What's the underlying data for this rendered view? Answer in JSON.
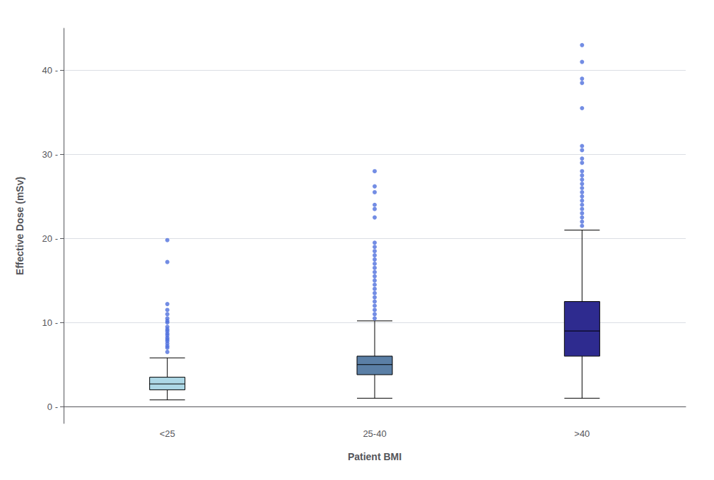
{
  "chart_data": {
    "type": "boxplot",
    "xlabel": "Patient BMI",
    "ylabel": "Effective Dose (mSv)",
    "categories": [
      "<25",
      "25-40",
      ">40"
    ],
    "colors": [
      "#add8e6",
      "#5b7fa6",
      "#2e2b8f"
    ],
    "values": [
      {
        "whisker_low": 0.8,
        "q1": 2.0,
        "median": 2.7,
        "q3": 3.5,
        "whisker_high": 5.8
      },
      {
        "whisker_low": 1.0,
        "q1": 3.8,
        "median": 5.0,
        "q3": 6.0,
        "whisker_high": 10.2
      },
      {
        "whisker_low": 1.0,
        "q1": 6.0,
        "median": 9.0,
        "q3": 12.5,
        "whisker_high": 21.0
      }
    ],
    "outliers": [
      [
        6.5,
        7.0,
        7.2,
        7.5,
        7.8,
        8.0,
        8.2,
        8.5,
        8.7,
        9.0,
        9.2,
        9.5,
        10.0,
        10.2,
        10.5,
        11.0,
        11.5,
        12.2,
        17.2,
        19.8
      ],
      [
        10.5,
        11.0,
        11.5,
        12.0,
        12.5,
        13.0,
        13.5,
        14.0,
        14.5,
        15.0,
        15.5,
        16.0,
        16.5,
        17.0,
        17.5,
        18.0,
        18.5,
        19.0,
        19.5,
        22.5,
        23.5,
        24.0,
        25.5,
        26.2,
        28.0
      ],
      [
        21.5,
        22.0,
        22.5,
        23.0,
        23.5,
        24.0,
        24.5,
        25.0,
        25.5,
        26.0,
        26.5,
        27.0,
        27.5,
        28.0,
        29.0,
        29.5,
        30.5,
        31.0,
        35.5,
        38.5,
        39.0,
        41.0,
        43.0
      ]
    ],
    "ylim": [
      -2,
      45
    ],
    "yticks": [
      {
        "value": 0,
        "label": "0 -"
      },
      {
        "value": 10,
        "label": "10 -"
      },
      {
        "value": 20,
        "label": "20 -"
      },
      {
        "value": 30,
        "label": "30 -"
      },
      {
        "value": 40,
        "label": "40 -"
      }
    ],
    "grid": true
  }
}
